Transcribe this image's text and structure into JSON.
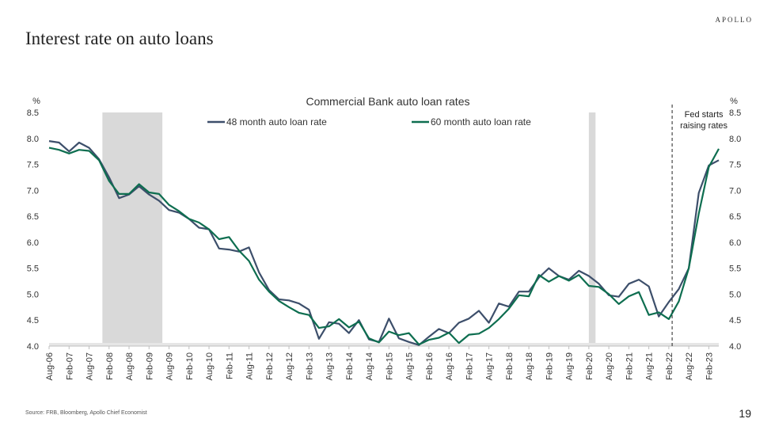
{
  "brand": "APOLLO",
  "title": "Interest rate on auto loans",
  "source": "Source: FRB, Bloomberg, Apollo Chief Economist",
  "page_number": "19",
  "chart_data": {
    "type": "line",
    "title": "Commercial Bank auto loan rates",
    "ylabel_left": "%",
    "ylabel_right": "%",
    "ylim": [
      4.0,
      8.5
    ],
    "yticks": [
      "4.0",
      "4.5",
      "5.0",
      "5.5",
      "6.0",
      "6.5",
      "7.0",
      "7.5",
      "8.0",
      "8.5"
    ],
    "xlim": [
      "2006-08",
      "2023-05"
    ],
    "xticks": [
      "Aug-06",
      "Feb-07",
      "Aug-07",
      "Feb-08",
      "Aug-08",
      "Feb-09",
      "Aug-09",
      "Feb-10",
      "Aug-10",
      "Feb-11",
      "Aug-11",
      "Feb-12",
      "Aug-12",
      "Feb-13",
      "Aug-13",
      "Feb-14",
      "Aug-14",
      "Feb-15",
      "Aug-15",
      "Feb-16",
      "Aug-16",
      "Feb-17",
      "Aug-17",
      "Feb-18",
      "Aug-18",
      "Feb-19",
      "Aug-19",
      "Feb-20",
      "Aug-20",
      "Feb-21",
      "Aug-21",
      "Feb-22",
      "Aug-22",
      "Feb-23"
    ],
    "recessions": [
      {
        "start": "2007-12",
        "end": "2009-06"
      },
      {
        "start": "2020-02",
        "end": "2020-04"
      }
    ],
    "annotation": {
      "date": "2022-03",
      "text_lines": [
        "Fed starts",
        "raising rates"
      ]
    },
    "grid": false,
    "legend": "top-center",
    "colors": {
      "48m": "#3d4f6b",
      "60m": "#0e6e50",
      "recession": "#d9d9d9"
    },
    "series": [
      {
        "name": "48 month auto loan rate",
        "key": "48m",
        "points": [
          [
            "2006-08",
            7.95
          ],
          [
            "2006-11",
            7.92
          ],
          [
            "2007-02",
            7.75
          ],
          [
            "2007-05",
            7.92
          ],
          [
            "2007-08",
            7.82
          ],
          [
            "2007-11",
            7.6
          ],
          [
            "2008-02",
            7.25
          ],
          [
            "2008-05",
            6.85
          ],
          [
            "2008-08",
            6.92
          ],
          [
            "2008-11",
            7.08
          ],
          [
            "2009-02",
            6.92
          ],
          [
            "2009-05",
            6.8
          ],
          [
            "2009-08",
            6.62
          ],
          [
            "2009-11",
            6.57
          ],
          [
            "2010-02",
            6.45
          ],
          [
            "2010-05",
            6.28
          ],
          [
            "2010-08",
            6.25
          ],
          [
            "2010-11",
            5.88
          ],
          [
            "2011-02",
            5.86
          ],
          [
            "2011-05",
            5.82
          ],
          [
            "2011-08",
            5.9
          ],
          [
            "2011-11",
            5.42
          ],
          [
            "2012-02",
            5.08
          ],
          [
            "2012-05",
            4.9
          ],
          [
            "2012-08",
            4.88
          ],
          [
            "2012-11",
            4.82
          ],
          [
            "2013-02",
            4.7
          ],
          [
            "2013-05",
            4.14
          ],
          [
            "2013-08",
            4.46
          ],
          [
            "2013-11",
            4.43
          ],
          [
            "2014-02",
            4.25
          ],
          [
            "2014-05",
            4.5
          ],
          [
            "2014-08",
            4.13
          ],
          [
            "2014-11",
            4.08
          ],
          [
            "2015-02",
            4.53
          ],
          [
            "2015-05",
            4.15
          ],
          [
            "2015-08",
            4.08
          ],
          [
            "2015-11",
            4.02
          ],
          [
            "2016-02",
            4.18
          ],
          [
            "2016-05",
            4.33
          ],
          [
            "2016-08",
            4.25
          ],
          [
            "2016-11",
            4.45
          ],
          [
            "2017-02",
            4.53
          ],
          [
            "2017-05",
            4.68
          ],
          [
            "2017-08",
            4.45
          ],
          [
            "2017-11",
            4.82
          ],
          [
            "2018-02",
            4.76
          ],
          [
            "2018-05",
            5.05
          ],
          [
            "2018-08",
            5.05
          ],
          [
            "2018-11",
            5.32
          ],
          [
            "2019-02",
            5.5
          ],
          [
            "2019-05",
            5.35
          ],
          [
            "2019-08",
            5.28
          ],
          [
            "2019-11",
            5.45
          ],
          [
            "2020-02",
            5.35
          ],
          [
            "2020-05",
            5.2
          ],
          [
            "2020-08",
            4.98
          ],
          [
            "2020-11",
            4.95
          ],
          [
            "2021-02",
            5.2
          ],
          [
            "2021-05",
            5.28
          ],
          [
            "2021-08",
            5.15
          ],
          [
            "2021-11",
            4.57
          ],
          [
            "2022-02",
            4.85
          ],
          [
            "2022-05",
            5.1
          ],
          [
            "2022-08",
            5.5
          ],
          [
            "2022-11",
            6.95
          ],
          [
            "2023-02",
            7.48
          ],
          [
            "2023-05",
            7.58
          ]
        ]
      },
      {
        "name": "60 month auto loan rate",
        "key": "60m",
        "points": [
          [
            "2006-08",
            7.82
          ],
          [
            "2006-11",
            7.78
          ],
          [
            "2007-02",
            7.71
          ],
          [
            "2007-05",
            7.78
          ],
          [
            "2007-08",
            7.76
          ],
          [
            "2007-11",
            7.58
          ],
          [
            "2008-02",
            7.18
          ],
          [
            "2008-05",
            6.93
          ],
          [
            "2008-08",
            6.93
          ],
          [
            "2008-11",
            7.12
          ],
          [
            "2009-02",
            6.96
          ],
          [
            "2009-05",
            6.93
          ],
          [
            "2009-08",
            6.72
          ],
          [
            "2009-11",
            6.6
          ],
          [
            "2010-02",
            6.45
          ],
          [
            "2010-05",
            6.38
          ],
          [
            "2010-08",
            6.25
          ],
          [
            "2010-11",
            6.06
          ],
          [
            "2011-02",
            6.1
          ],
          [
            "2011-05",
            5.84
          ],
          [
            "2011-08",
            5.64
          ],
          [
            "2011-11",
            5.28
          ],
          [
            "2012-02",
            5.05
          ],
          [
            "2012-05",
            4.87
          ],
          [
            "2012-08",
            4.75
          ],
          [
            "2012-11",
            4.64
          ],
          [
            "2013-02",
            4.6
          ],
          [
            "2013-05",
            4.35
          ],
          [
            "2013-08",
            4.38
          ],
          [
            "2013-11",
            4.52
          ],
          [
            "2014-02",
            4.36
          ],
          [
            "2014-05",
            4.47
          ],
          [
            "2014-08",
            4.15
          ],
          [
            "2014-11",
            4.07
          ],
          [
            "2015-02",
            4.28
          ],
          [
            "2015-05",
            4.21
          ],
          [
            "2015-08",
            4.25
          ],
          [
            "2015-11",
            4.03
          ],
          [
            "2016-02",
            4.12
          ],
          [
            "2016-05",
            4.16
          ],
          [
            "2016-08",
            4.26
          ],
          [
            "2016-11",
            4.06
          ],
          [
            "2017-02",
            4.22
          ],
          [
            "2017-05",
            4.24
          ],
          [
            "2017-08",
            4.35
          ],
          [
            "2017-11",
            4.52
          ],
          [
            "2018-02",
            4.72
          ],
          [
            "2018-05",
            4.98
          ],
          [
            "2018-08",
            4.96
          ],
          [
            "2018-11",
            5.37
          ],
          [
            "2019-02",
            5.24
          ],
          [
            "2019-05",
            5.35
          ],
          [
            "2019-08",
            5.26
          ],
          [
            "2019-11",
            5.37
          ],
          [
            "2020-02",
            5.16
          ],
          [
            "2020-05",
            5.14
          ],
          [
            "2020-08",
            5.0
          ],
          [
            "2020-11",
            4.81
          ],
          [
            "2021-02",
            4.96
          ],
          [
            "2021-05",
            5.04
          ],
          [
            "2021-08",
            4.6
          ],
          [
            "2021-11",
            4.65
          ],
          [
            "2022-02",
            4.52
          ],
          [
            "2022-05",
            4.86
          ],
          [
            "2022-08",
            5.5
          ],
          [
            "2022-11",
            6.55
          ],
          [
            "2023-02",
            7.45
          ],
          [
            "2023-05",
            7.8
          ]
        ]
      }
    ]
  }
}
